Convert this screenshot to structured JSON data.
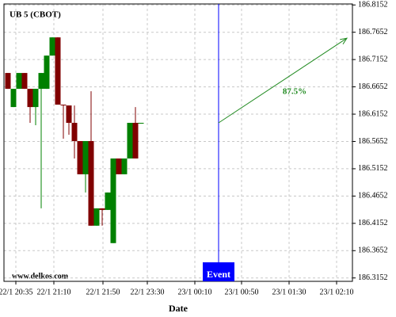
{
  "chart_data": {
    "type": "candlestick",
    "title": "UB 5 (CBOT)",
    "watermark": "www.delkos.com",
    "x_label": "Date",
    "xticks": [
      "22/1 20:35",
      "22/1 21:10",
      "22/1 21:50",
      "22/1 23:30",
      "23/1 00:10",
      "23/1 00:50",
      "23/1 01:30",
      "23/1 02:10"
    ],
    "ylim": [
      186.309,
      186.817
    ],
    "yticks": [
      186.3152,
      186.3652,
      186.4152,
      186.4652,
      186.5152,
      186.5652,
      186.6152,
      186.6652,
      186.7152,
      186.7652,
      186.8152
    ],
    "grid": true,
    "up_color": "#008000",
    "down_color": "#800000",
    "candles": [
      {
        "open": 186.6906,
        "high": 186.6906,
        "low": 186.6616,
        "close": 186.6616
      },
      {
        "open": 186.6282,
        "high": 186.6616,
        "low": 186.6282,
        "close": 186.6616
      },
      {
        "open": 186.6616,
        "high": 186.6906,
        "low": 186.6616,
        "close": 186.6906
      },
      {
        "open": 186.6906,
        "high": 186.6906,
        "low": 186.6616,
        "close": 186.6616
      },
      {
        "open": 186.6616,
        "high": 186.6616,
        "low": 186.5993,
        "close": 186.6282
      },
      {
        "open": 186.6282,
        "high": 186.6616,
        "low": 186.5949,
        "close": 186.6616
      },
      {
        "open": 186.6616,
        "high": 186.6906,
        "low": 186.4427,
        "close": 186.6906
      },
      {
        "open": 186.6616,
        "high": 186.7224,
        "low": 186.6616,
        "close": 186.7224
      },
      {
        "open": 186.7224,
        "high": 186.7558,
        "low": 186.7224,
        "close": 186.7558
      },
      {
        "open": 186.7558,
        "high": 186.7558,
        "low": 186.6326,
        "close": 186.6326
      },
      {
        "open": 186.6326,
        "high": 186.6326,
        "low": 186.5703,
        "close": 186.6311
      },
      {
        "open": 186.6311,
        "high": 186.6311,
        "low": 186.5775,
        "close": 186.5993
      },
      {
        "open": 186.5993,
        "high": 186.6311,
        "low": 186.534,
        "close": 186.5659
      },
      {
        "open": 186.5659,
        "high": 186.5659,
        "low": 186.5051,
        "close": 186.5051
      },
      {
        "open": 186.5051,
        "high": 186.5659,
        "low": 186.4717,
        "close": 186.5659
      },
      {
        "open": 186.5659,
        "high": 186.6572,
        "low": 186.4109,
        "close": 186.4109
      },
      {
        "open": 186.4109,
        "high": 186.4427,
        "low": 186.4109,
        "close": 186.4427
      },
      {
        "open": 186.4427,
        "high": 186.4427,
        "low": 186.4109,
        "close": 186.4398
      },
      {
        "open": 186.4398,
        "high": 186.4717,
        "low": 186.4398,
        "close": 186.4717
      },
      {
        "open": 186.379,
        "high": 186.534,
        "low": 186.379,
        "close": 186.534
      },
      {
        "open": 186.534,
        "high": 186.534,
        "low": 186.5051,
        "close": 186.5051
      },
      {
        "open": 186.5051,
        "high": 186.534,
        "low": 186.5051,
        "close": 186.534
      },
      {
        "open": 186.534,
        "high": 186.5993,
        "low": 186.534,
        "close": 186.5993
      },
      {
        "open": 186.5993,
        "high": 186.6282,
        "low": 186.534,
        "close": 186.534
      },
      {
        "open": 186.5993,
        "high": 186.5993,
        "low": 186.5993,
        "close": 186.5993
      }
    ],
    "event": {
      "label": "Event",
      "color": "#0000ff"
    },
    "projection": {
      "from": 186.5993,
      "to": 186.7543,
      "label": "87.5%",
      "color": "#228b22"
    }
  }
}
